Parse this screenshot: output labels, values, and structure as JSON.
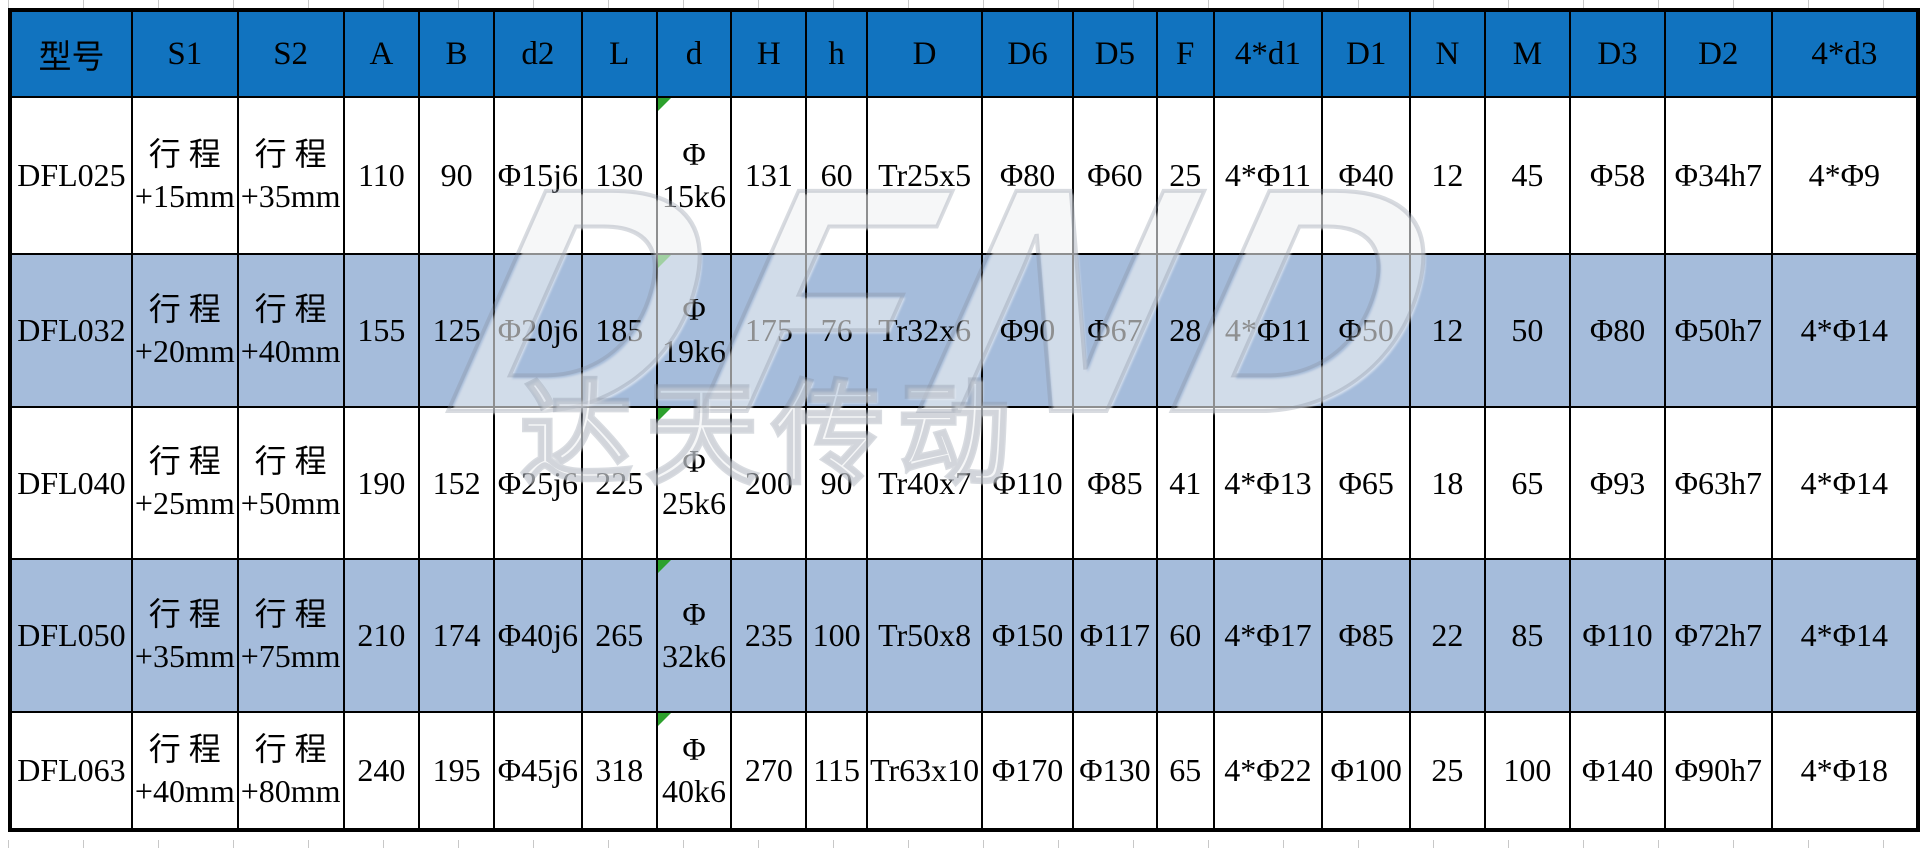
{
  "table": {
    "columns": [
      "型号",
      "S1",
      "S2",
      "A",
      "B",
      "d2",
      "L",
      "d",
      "H",
      "h",
      "D",
      "D6",
      "D5",
      "F",
      "4*d1",
      "D1",
      "N",
      "M",
      "D3",
      "D2",
      "4*d3"
    ],
    "rows": [
      [
        "DFL025",
        "行 程\n+15mm",
        "行 程\n+35mm",
        "110",
        "90",
        "Φ15j6",
        "130",
        "Φ\n15k6",
        "131",
        "60",
        "Tr25x5",
        "Φ80",
        "Φ60",
        "25",
        "4*Φ11",
        "Φ40",
        "12",
        "45",
        "Φ58",
        "Φ34h7",
        "4*Φ9"
      ],
      [
        "DFL032",
        "行 程\n+20mm",
        "行 程\n+40mm",
        "155",
        "125",
        "Φ20j6",
        "185",
        "Φ\n19k6",
        "175",
        "76",
        "Tr32x6",
        "Φ90",
        "Φ67",
        "28",
        "4*Φ11",
        "Φ50",
        "12",
        "50",
        "Φ80",
        "Φ50h7",
        "4*Φ14"
      ],
      [
        "DFL040",
        "行 程\n+25mm",
        "行 程\n+50mm",
        "190",
        "152",
        "Φ25j6",
        "225",
        "Φ\n25k6",
        "200",
        "90",
        "Tr40x7",
        "Φ110",
        "Φ85",
        "41",
        "4*Φ13",
        "Φ65",
        "18",
        "65",
        "Φ93",
        "Φ63h7",
        "4*Φ14"
      ],
      [
        "DFL050",
        "行 程\n+35mm",
        "行 程\n+75mm",
        "210",
        "174",
        "Φ40j6",
        "265",
        "Φ\n32k6",
        "235",
        "100",
        "Tr50x8",
        "Φ150",
        "Φ117",
        "60",
        "4*Φ17",
        "Φ85",
        "22",
        "85",
        "Φ110",
        "Φ72h7",
        "4*Φ14"
      ],
      [
        "DFL063",
        "行 程\n+40mm",
        "行 程\n+80mm",
        "240",
        "195",
        "Φ45j6",
        "318",
        "Φ\n40k6",
        "270",
        "115",
        "Tr63x10",
        "Φ170",
        "Φ130",
        "65",
        "4*Φ22",
        "Φ100",
        "25",
        "100",
        "Φ140",
        "Φ90h7",
        "4*Φ18"
      ]
    ],
    "error_flag_column": 7
  },
  "watermark": {
    "letters": "DFND",
    "cjk": "达天传动"
  },
  "colors": {
    "header_bg": "#1173BF",
    "row_alt_bg": "#A5BCDB",
    "row_bg": "#FFFFFF",
    "border": "#000000",
    "flag_green": "#2DA12D"
  }
}
